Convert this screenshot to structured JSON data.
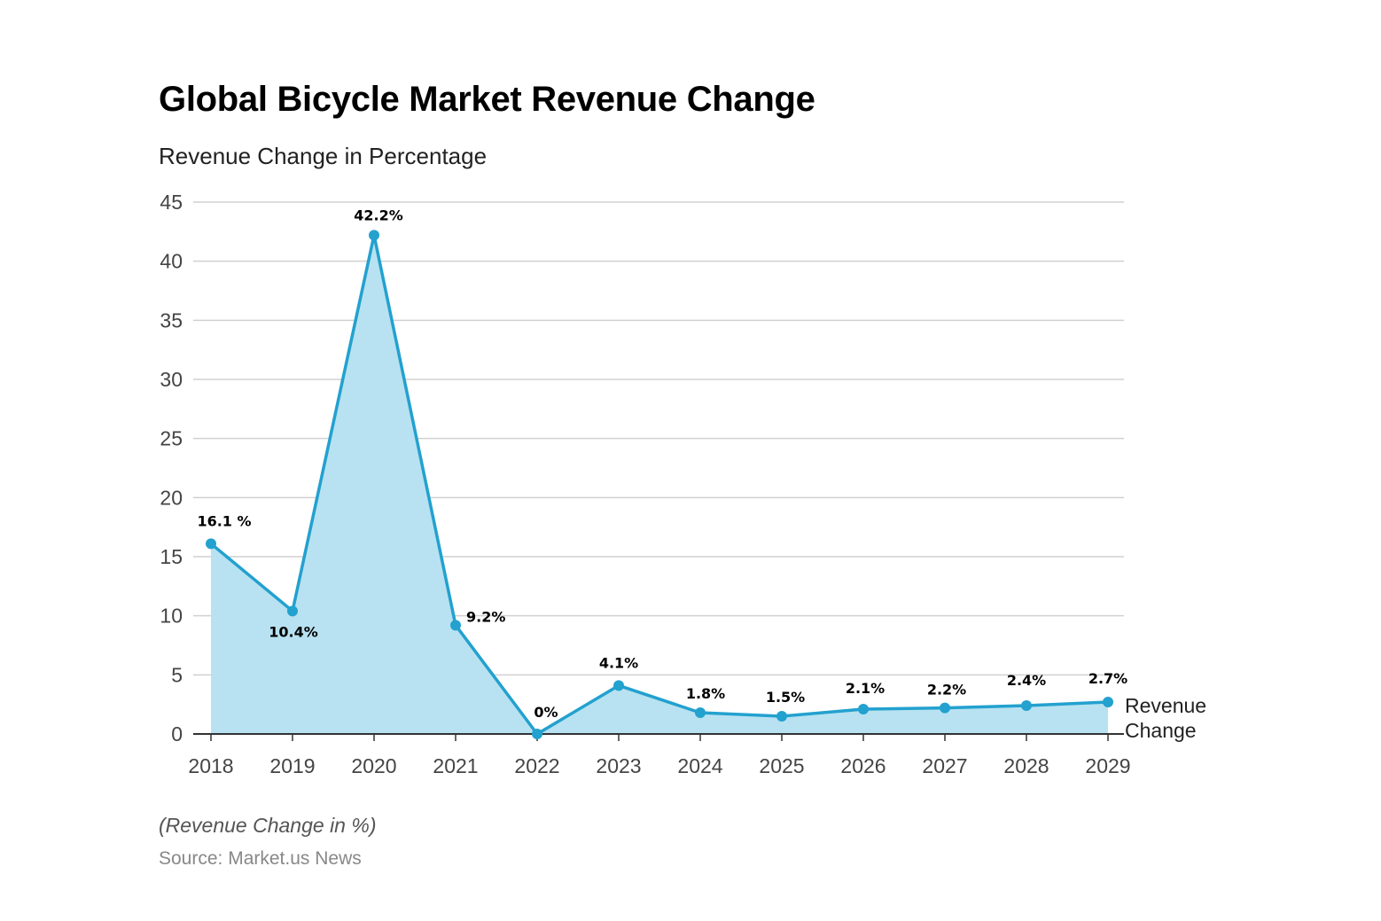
{
  "title": "Global Bicycle Market Revenue Change",
  "subtitle": "Revenue Change in Percentage",
  "footnote": "(Revenue Change in %)",
  "source": "Source: Market.us News",
  "colors": {
    "line": "#23a1cf",
    "fill": "#b8e2f1",
    "grid": "#d0d0d0",
    "axis": "#333333"
  },
  "chart_data": {
    "type": "area",
    "title": "Global Bicycle Market Revenue Change",
    "subtitle": "Revenue Change in Percentage",
    "categories": [
      "2018",
      "2019",
      "2020",
      "2021",
      "2022",
      "2023",
      "2024",
      "2025",
      "2026",
      "2027",
      "2028",
      "2029"
    ],
    "series": [
      {
        "name": "Revenue Change",
        "values": [
          16.1,
          10.4,
          42.2,
          9.2,
          0,
          4.1,
          1.8,
          1.5,
          2.1,
          2.2,
          2.4,
          2.7
        ],
        "labels": [
          "16.1 %",
          "10.4%",
          "42.2%",
          "9.2%",
          "0%",
          "4.1%",
          "1.8%",
          "1.5%",
          "2.1%",
          "2.2%",
          "2.4%",
          "2.7%"
        ]
      }
    ],
    "y_ticks": [
      0,
      5,
      10,
      15,
      20,
      25,
      30,
      35,
      40,
      45
    ],
    "ylim": [
      0,
      45
    ],
    "grid": true,
    "legend": "right-end-of-line"
  }
}
